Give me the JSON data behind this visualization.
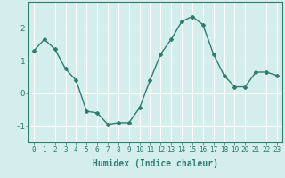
{
  "title": "",
  "xlabel": "Humidex (Indice chaleur)",
  "ylabel": "",
  "x": [
    0,
    1,
    2,
    3,
    4,
    5,
    6,
    7,
    8,
    9,
    10,
    11,
    12,
    13,
    14,
    15,
    16,
    17,
    18,
    19,
    20,
    21,
    22,
    23
  ],
  "y": [
    1.3,
    1.65,
    1.35,
    0.75,
    0.4,
    -0.55,
    -0.6,
    -0.95,
    -0.9,
    -0.9,
    -0.45,
    0.4,
    1.2,
    1.65,
    2.2,
    2.35,
    2.1,
    1.2,
    0.55,
    0.2,
    0.2,
    0.65,
    0.65,
    0.55
  ],
  "line_color": "#2e7d6e",
  "marker": "D",
  "marker_size": 2,
  "background_color": "#d4eeee",
  "grid_color": "#ffffff",
  "yticks": [
    -1,
    0,
    1,
    2
  ],
  "ylim": [
    -1.5,
    2.8
  ],
  "xlim": [
    -0.5,
    23.5
  ],
  "tick_label_fontsize": 5.5,
  "xlabel_fontsize": 7
}
